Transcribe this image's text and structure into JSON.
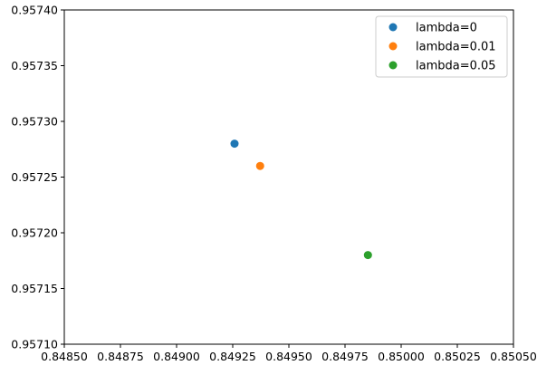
{
  "chart_data": {
    "type": "scatter",
    "title": "",
    "xlabel": "",
    "ylabel": "",
    "xlim": [
      0.8485,
      0.8505
    ],
    "ylim": [
      0.9571,
      0.9574
    ],
    "x_ticks": [
      0.8485,
      0.84875,
      0.849,
      0.84925,
      0.8495,
      0.84975,
      0.85,
      0.85025,
      0.8505
    ],
    "x_tick_labels": [
      "0.84850",
      "0.84875",
      "0.84900",
      "0.84925",
      "0.84950",
      "0.84975",
      "0.85000",
      "0.85025",
      "0.85050"
    ],
    "y_ticks": [
      0.9571,
      0.95715,
      0.9572,
      0.95725,
      0.9573,
      0.95735,
      0.9574
    ],
    "y_tick_labels": [
      "0.95710",
      "0.95715",
      "0.95720",
      "0.95725",
      "0.95730",
      "0.95735",
      "0.95740"
    ],
    "grid": false,
    "legend_position": "top-right",
    "series": [
      {
        "name": "lambda=0",
        "color": "#1f77b4",
        "points": [
          {
            "x": 0.849258,
            "y": 0.95728
          }
        ]
      },
      {
        "name": "lambda=0.01",
        "color": "#ff7f0e",
        "points": [
          {
            "x": 0.849372,
            "y": 0.95726
          }
        ]
      },
      {
        "name": "lambda=0.05",
        "color": "#2ca02c",
        "points": [
          {
            "x": 0.849852,
            "y": 0.95718
          }
        ]
      }
    ]
  }
}
